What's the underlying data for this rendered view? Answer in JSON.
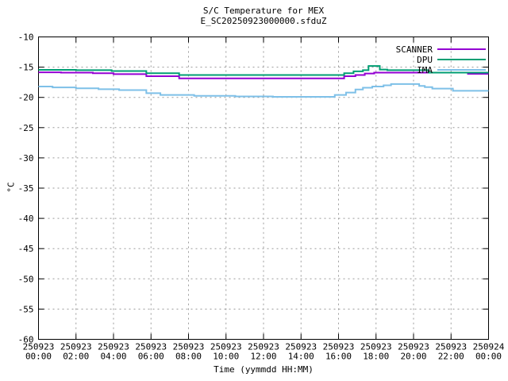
{
  "header": {
    "title": "S/C Temperature for MEX",
    "subtitle": "E_SC20250923000000.sfduZ"
  },
  "chart_data": {
    "type": "line",
    "title": "S/C Temperature for MEX",
    "subtitle": "E_SC20250923000000.sfduZ",
    "xlabel": "Time (yymmdd HH:MM)",
    "ylabel": "°C",
    "ylim": [
      -60,
      -10
    ],
    "ytick_step": 5,
    "y_tick_labels": [
      "-10",
      "-15",
      "-20",
      "-25",
      "-30",
      "-35",
      "-40",
      "-45",
      "-50",
      "-55",
      "-60"
    ],
    "x_range_hours": [
      0,
      24
    ],
    "x_ticks": [
      {
        "date": "250923",
        "time": "00:00"
      },
      {
        "date": "250923",
        "time": "02:00"
      },
      {
        "date": "250923",
        "time": "04:00"
      },
      {
        "date": "250923",
        "time": "06:00"
      },
      {
        "date": "250923",
        "time": "08:00"
      },
      {
        "date": "250923",
        "time": "10:00"
      },
      {
        "date": "250923",
        "time": "12:00"
      },
      {
        "date": "250923",
        "time": "14:00"
      },
      {
        "date": "250923",
        "time": "16:00"
      },
      {
        "date": "250923",
        "time": "18:00"
      },
      {
        "date": "250923",
        "time": "20:00"
      },
      {
        "date": "250923",
        "time": "22:00"
      },
      {
        "date": "250924",
        "time": "00:00"
      }
    ],
    "grid": true,
    "legend_position": "top-right-inside",
    "interpolation": "step-after",
    "colors": {
      "grid": "#9a9a9a",
      "axis": "#000000",
      "background": "#ffffff"
    },
    "series": [
      {
        "name": "SCANNER",
        "color": "#9400d3",
        "points": [
          [
            0,
            -15.85
          ],
          [
            1.2,
            -15.9
          ],
          [
            2.9,
            -16.0
          ],
          [
            4.0,
            -16.15
          ],
          [
            5.75,
            -16.5
          ],
          [
            7.5,
            -16.85
          ],
          [
            16.3,
            -16.5
          ],
          [
            16.9,
            -16.3
          ],
          [
            17.4,
            -16.05
          ],
          [
            17.9,
            -15.9
          ],
          [
            22.9,
            -16.1
          ]
        ]
      },
      {
        "name": "DPU",
        "color": "#009e73",
        "points": [
          [
            0,
            -15.45
          ],
          [
            2.0,
            -15.5
          ],
          [
            3.9,
            -15.65
          ],
          [
            5.75,
            -16.0
          ],
          [
            7.5,
            -16.3
          ],
          [
            16.3,
            -16.0
          ],
          [
            16.8,
            -15.7
          ],
          [
            17.3,
            -15.5
          ],
          [
            17.6,
            -14.8
          ],
          [
            18.2,
            -15.4
          ],
          [
            18.6,
            -15.5
          ],
          [
            20.8,
            -15.9
          ]
        ]
      },
      {
        "name": "IMA",
        "color": "#7ec0e8",
        "points": [
          [
            0,
            -18.2
          ],
          [
            0.75,
            -18.35
          ],
          [
            2.0,
            -18.5
          ],
          [
            3.2,
            -18.65
          ],
          [
            4.3,
            -18.8
          ],
          [
            5.75,
            -19.3
          ],
          [
            6.5,
            -19.6
          ],
          [
            8.3,
            -19.75
          ],
          [
            10.5,
            -19.85
          ],
          [
            12.5,
            -19.9
          ],
          [
            15.8,
            -19.6
          ],
          [
            16.4,
            -19.2
          ],
          [
            16.9,
            -18.7
          ],
          [
            17.3,
            -18.4
          ],
          [
            17.8,
            -18.2
          ],
          [
            18.4,
            -18.0
          ],
          [
            18.8,
            -17.8
          ],
          [
            20.3,
            -18.1
          ],
          [
            20.6,
            -18.3
          ],
          [
            21.0,
            -18.55
          ],
          [
            22.1,
            -18.9
          ]
        ]
      }
    ]
  }
}
